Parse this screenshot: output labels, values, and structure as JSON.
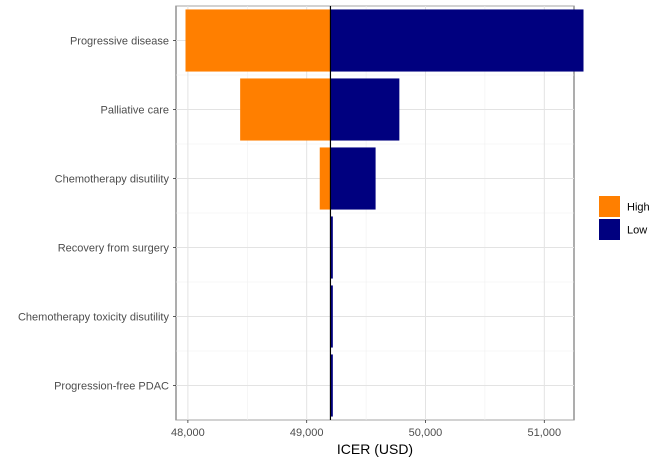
{
  "chart_data": {
    "type": "bar",
    "orientation": "horizontal",
    "subtype": "tornado",
    "title": "",
    "xlabel": "ICER (USD)",
    "ylabel": "",
    "baseline": 49200,
    "xlim": [
      47900,
      51250
    ],
    "xticks": [
      48000,
      49000,
      50000,
      51000
    ],
    "xtick_labels": [
      "48,000",
      "49,000",
      "50,000",
      "51,000"
    ],
    "categories": [
      "Progressive disease",
      "Palliative care",
      "Chemotherapy disutility",
      "Recovery from surgery",
      "Chemotherapy toxicity disutility",
      "Progression-free PDAC"
    ],
    "series": [
      {
        "name": "High",
        "color": "#FF7F00",
        "values": [
          47980,
          48440,
          49110,
          49200,
          49200,
          49200
        ]
      },
      {
        "name": "Low",
        "color": "#00007F",
        "values": [
          51330,
          49780,
          49580,
          49220,
          49220,
          49220
        ]
      }
    ],
    "grid": true,
    "legend": "right"
  }
}
